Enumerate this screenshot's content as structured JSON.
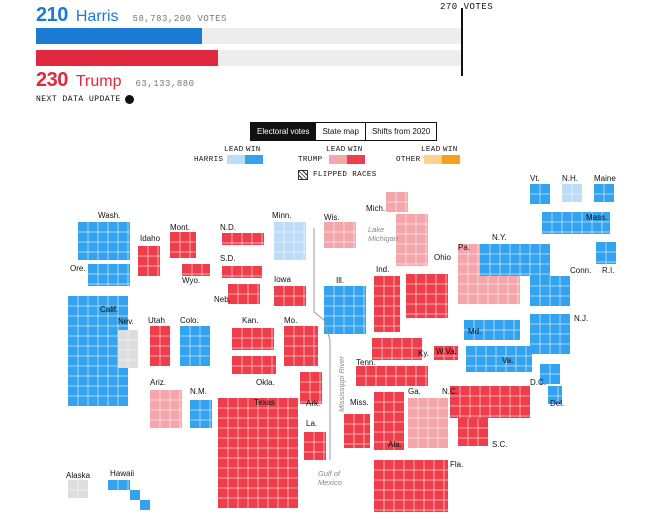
{
  "results": {
    "harris": {
      "ev": "210",
      "name": "Harris",
      "votes": "58,783,200 VOTES",
      "color": "#1a7ad4",
      "ev_share": 0.39
    },
    "trump": {
      "ev": "230",
      "name": "Trump",
      "votes": "63,133,880",
      "color": "#e0293f",
      "ev_share": 0.428
    },
    "threshold_label": "270 VOTES",
    "next_update": "NEXT DATA UPDATE"
  },
  "tabs": [
    "Electoral votes",
    "State map",
    "Shifts from 2020"
  ],
  "legend": {
    "harris": "HARRIS",
    "trump": "TRUMP",
    "other": "OTHER",
    "lead": "LEAD",
    "win": "WIN",
    "flipped": "FLIPPED RACES",
    "colors": {
      "harris_lead": "#bcdcf7",
      "harris_win": "#33a2ef",
      "trump_lead": "#f4a6ab",
      "trump_win": "#ee3e4b",
      "other_lead": "#fbd38a",
      "other_win": "#f8a01b",
      "pending": "#dddddd"
    }
  },
  "states": [
    {
      "label": "Wash.",
      "status": "harris_win"
    },
    {
      "label": "Ore.",
      "status": "harris_win"
    },
    {
      "label": "Calif.",
      "status": "harris_win"
    },
    {
      "label": "Idaho",
      "status": "trump_win"
    },
    {
      "label": "Nev.",
      "status": "pending"
    },
    {
      "label": "Mont.",
      "status": "trump_win"
    },
    {
      "label": "Wyo.",
      "status": "trump_win"
    },
    {
      "label": "Utah",
      "status": "trump_win"
    },
    {
      "label": "Colo.",
      "status": "harris_win"
    },
    {
      "label": "Ariz.",
      "status": "trump_lead"
    },
    {
      "label": "N.M.",
      "status": "harris_win"
    },
    {
      "label": "N.D.",
      "status": "trump_win"
    },
    {
      "label": "S.D.",
      "status": "trump_win"
    },
    {
      "label": "Neb.",
      "status": "trump_win"
    },
    {
      "label": "Kan.",
      "status": "trump_win"
    },
    {
      "label": "Okla.",
      "status": "trump_win"
    },
    {
      "label": "Texas",
      "status": "trump_win"
    },
    {
      "label": "Minn.",
      "status": "harris_lead"
    },
    {
      "label": "Iowa",
      "status": "trump_win"
    },
    {
      "label": "Mo.",
      "status": "trump_win"
    },
    {
      "label": "Ark.",
      "status": "trump_win"
    },
    {
      "label": "La.",
      "status": "trump_win"
    },
    {
      "label": "Wis.",
      "status": "trump_lead"
    },
    {
      "label": "Ill.",
      "status": "harris_win"
    },
    {
      "label": "Mich.",
      "status": "trump_lead"
    },
    {
      "label": "Ind.",
      "status": "trump_win"
    },
    {
      "label": "Ohio",
      "status": "trump_win"
    },
    {
      "label": "Ky.",
      "status": "trump_win"
    },
    {
      "label": "Tenn.",
      "status": "trump_win"
    },
    {
      "label": "Miss.",
      "status": "trump_win"
    },
    {
      "label": "Ala.",
      "status": "trump_win"
    },
    {
      "label": "Ga.",
      "status": "trump_lead"
    },
    {
      "label": "Fla.",
      "status": "trump_win"
    },
    {
      "label": "S.C.",
      "status": "trump_win"
    },
    {
      "label": "N.C.",
      "status": "trump_win"
    },
    {
      "label": "W.Va.",
      "status": "trump_win"
    },
    {
      "label": "Va.",
      "status": "harris_win"
    },
    {
      "label": "Md.",
      "status": "harris_win"
    },
    {
      "label": "D.C.",
      "status": "harris_win"
    },
    {
      "label": "Del.",
      "status": "harris_win"
    },
    {
      "label": "N.J.",
      "status": "harris_win"
    },
    {
      "label": "Pa.",
      "status": "trump_lead"
    },
    {
      "label": "N.Y.",
      "status": "harris_win"
    },
    {
      "label": "Conn.",
      "status": "harris_win"
    },
    {
      "label": "R.I.",
      "status": "harris_win"
    },
    {
      "label": "Mass.",
      "status": "harris_win"
    },
    {
      "label": "Vt.",
      "status": "harris_win"
    },
    {
      "label": "N.H.",
      "status": "harris_lead"
    },
    {
      "label": "Maine",
      "status": "harris_win"
    },
    {
      "label": "Alaska",
      "status": "pending"
    },
    {
      "label": "Hawaii",
      "status": "harris_win"
    }
  ],
  "geo_labels": {
    "lake": "Lake\nMichigan",
    "river": "Mississippi River",
    "gulf": "Gulf of\nMexico"
  }
}
